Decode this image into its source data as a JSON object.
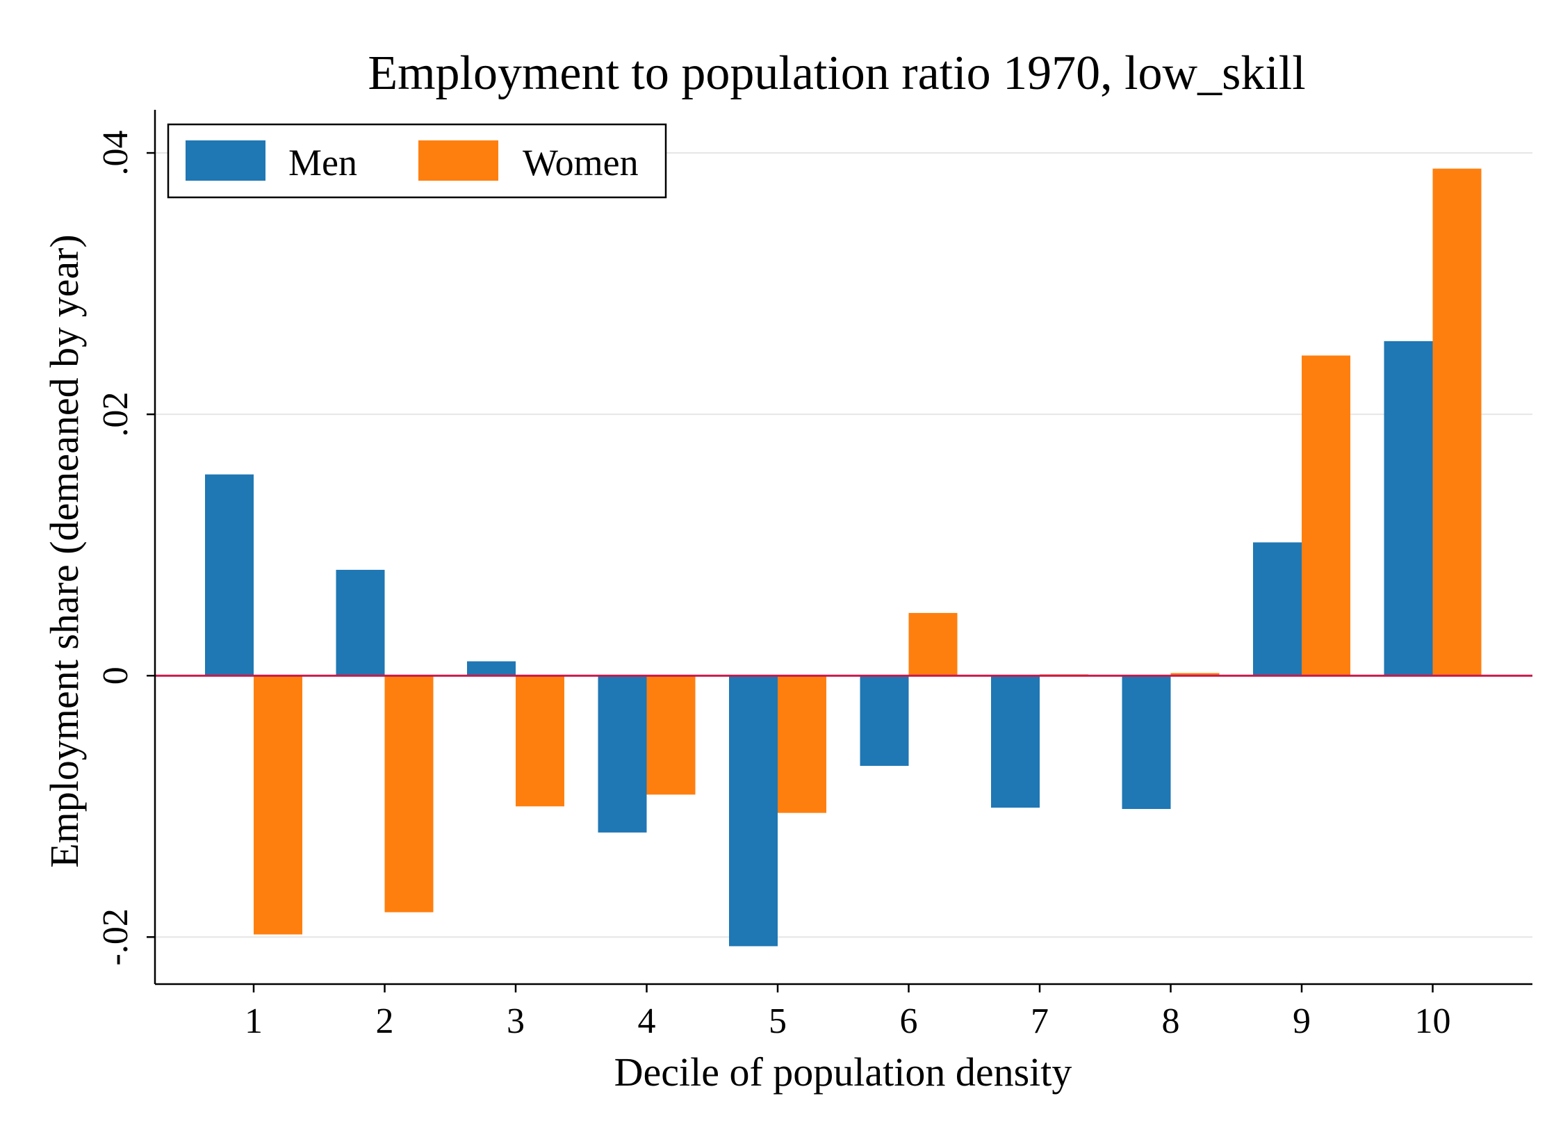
{
  "chart_data": {
    "type": "bar",
    "title": "Employment to population ratio 1970, low_skill",
    "xlabel": "Decile of population density",
    "ylabel": "Employment share (demeaned by year)",
    "categories": [
      "1",
      "2",
      "3",
      "4",
      "5",
      "6",
      "7",
      "8",
      "9",
      "10"
    ],
    "series": [
      {
        "name": "Men",
        "color": "#1f77b4",
        "values": [
          0.0154,
          0.0081,
          0.0011,
          -0.012,
          -0.0207,
          -0.0069,
          -0.0101,
          -0.0102,
          0.0102,
          0.0256
        ]
      },
      {
        "name": "Women",
        "color": "#ff7f0e",
        "values": [
          -0.0198,
          -0.0181,
          -0.01,
          -0.0091,
          -0.0105,
          0.0048,
          0.0001,
          0.0002,
          0.0245,
          0.0388
        ]
      }
    ],
    "ylim": [
      -0.0236,
      0.0433
    ],
    "yticks": [
      {
        "value": -0.02,
        "label": "-.02"
      },
      {
        "value": 0,
        "label": "0"
      },
      {
        "value": 0.02,
        "label": ".02"
      },
      {
        "value": 0.04,
        "label": ".04"
      }
    ],
    "reference_line": {
      "value": 0,
      "color": "#c8184a"
    },
    "grid": true,
    "grid_color": "#e6e6e6",
    "legend_position": "top-left"
  }
}
